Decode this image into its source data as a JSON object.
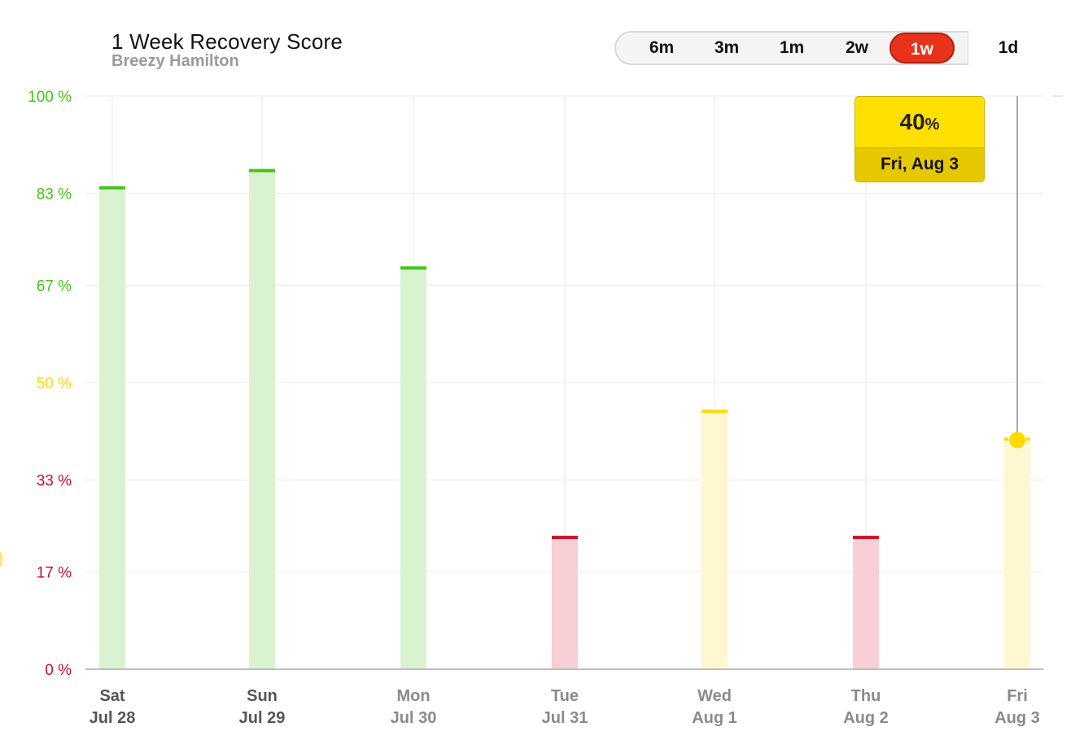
{
  "header": {
    "title": "1 Week Recovery Score",
    "subtitle": "Breezy Hamilton"
  },
  "range_selector": {
    "options": [
      "6m",
      "3m",
      "1m",
      "2w",
      "1w",
      "1d"
    ],
    "selected": "1w"
  },
  "tooltip": {
    "value": "40",
    "unit": "%",
    "date": "Fri, Aug 3"
  },
  "colors": {
    "green": "#44c41a",
    "green_fill": "#d9f3d0",
    "yellow": "#ffd900",
    "yellow_fill": "#fff7cf",
    "red": "#c8102e",
    "red_fill": "#f7cfd4",
    "accent": "#e8321a"
  },
  "chart_data": {
    "type": "bar",
    "categories": [
      {
        "day": "Sat",
        "date": "Jul 28"
      },
      {
        "day": "Sun",
        "date": "Jul 29"
      },
      {
        "day": "Mon",
        "date": "Jul 30"
      },
      {
        "day": "Tue",
        "date": "Jul 31"
      },
      {
        "day": "Wed",
        "date": "Aug 1"
      },
      {
        "day": "Thu",
        "date": "Aug 2"
      },
      {
        "day": "Fri",
        "date": "Aug 3"
      }
    ],
    "values": [
      84,
      87,
      70,
      23,
      45,
      23,
      40
    ],
    "zones": [
      "green",
      "green",
      "green",
      "red",
      "yellow",
      "red",
      "yellow"
    ],
    "highlighted_index": 6,
    "ylim": [
      0,
      100
    ],
    "yticks": [
      {
        "value": 100,
        "label": "100",
        "zone": "green"
      },
      {
        "value": 83,
        "label": "83",
        "zone": "green"
      },
      {
        "value": 67,
        "label": "67",
        "zone": "green"
      },
      {
        "value": 50,
        "label": "50",
        "zone": "yellow"
      },
      {
        "value": 33,
        "label": "33",
        "zone": "red"
      },
      {
        "value": 17,
        "label": "17",
        "zone": "red"
      },
      {
        "value": 0,
        "label": "0",
        "zone": "red"
      }
    ],
    "ytick_unit": "%",
    "grid": true
  }
}
